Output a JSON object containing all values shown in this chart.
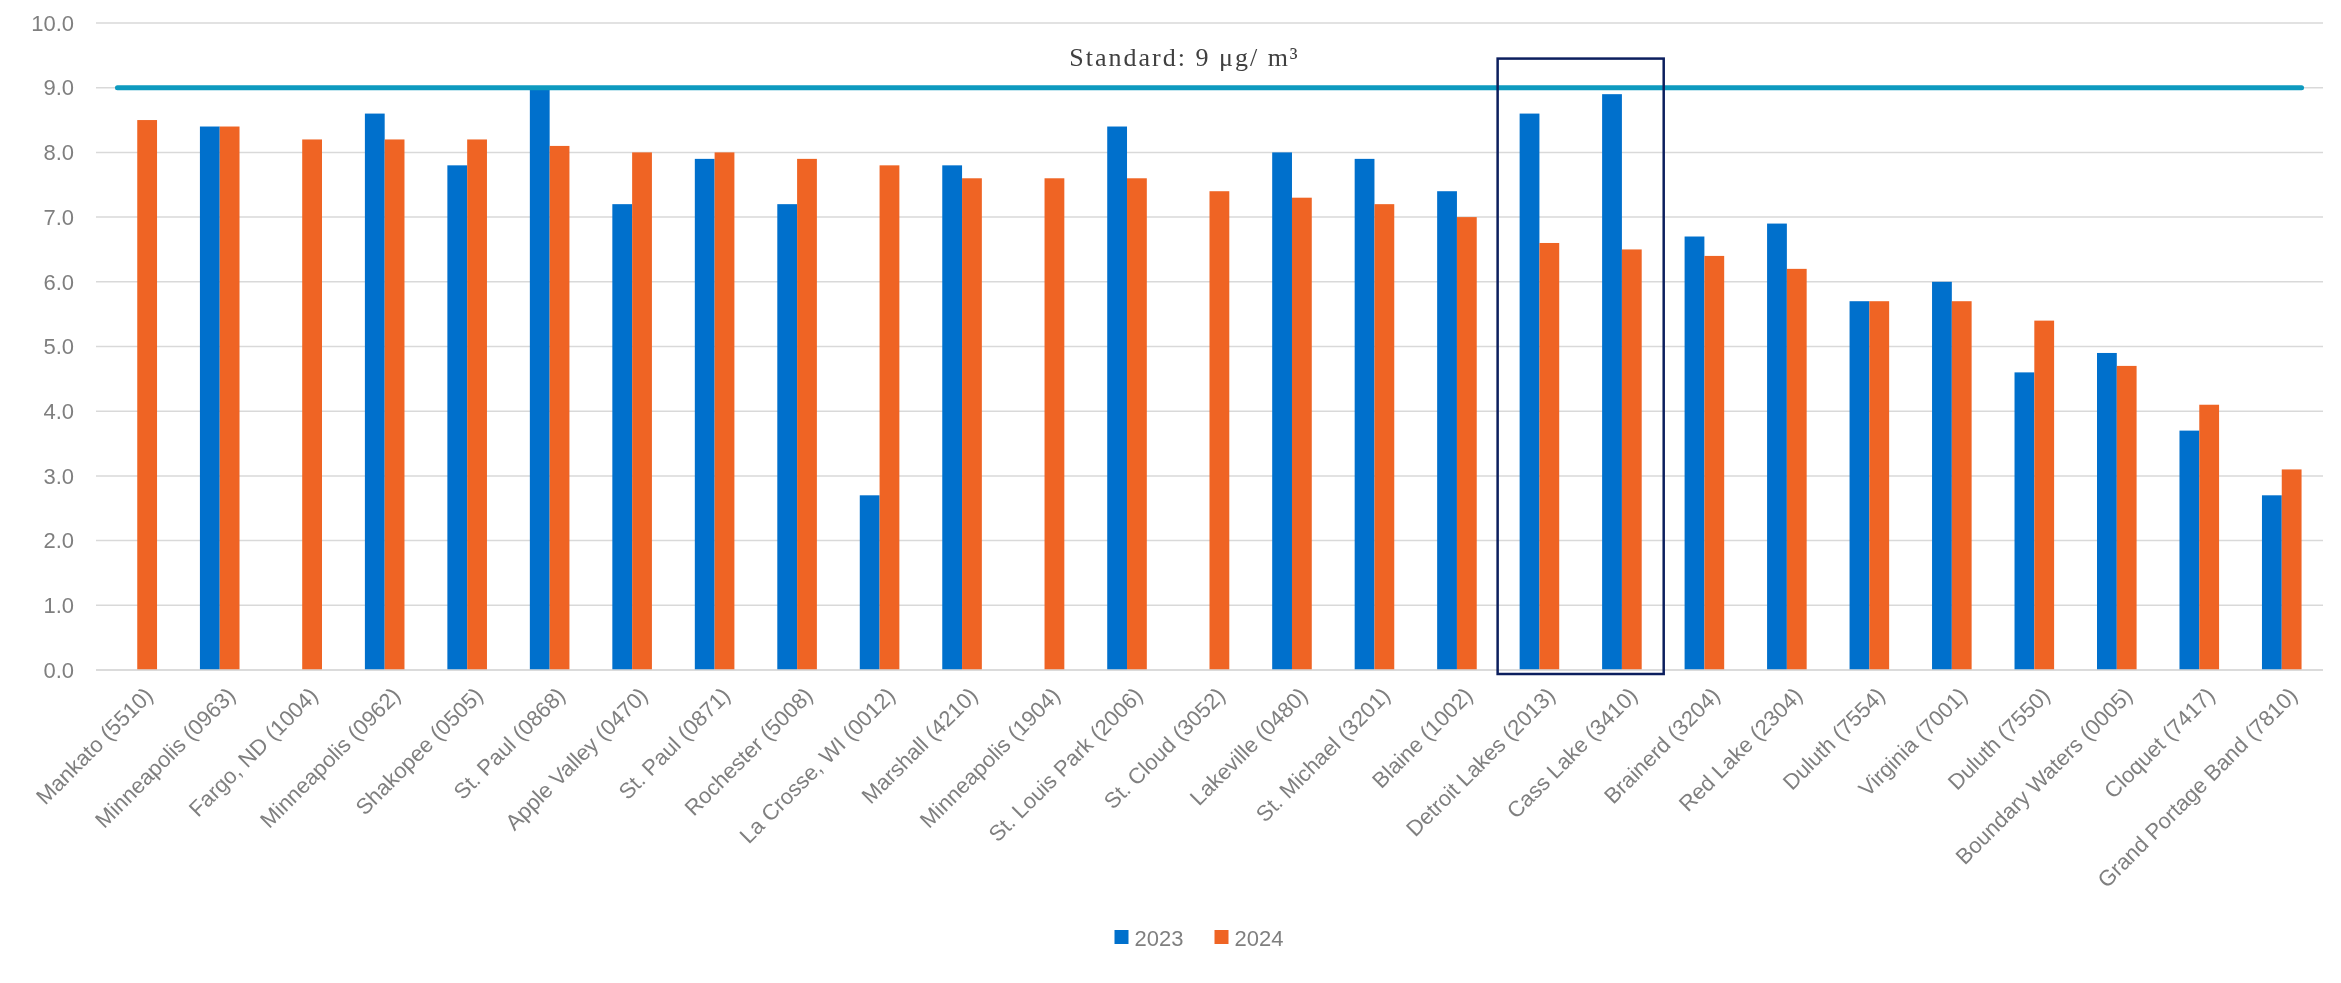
{
  "chart_data": {
    "type": "bar",
    "categories": [
      "Mankato (5510)",
      "Minneapolis (0963)",
      "Fargo, ND (1004)",
      "Minneapolis (0962)",
      "Shakopee (0505)",
      "St. Paul (0868)",
      "Apple Valley (0470)",
      "St. Paul (0871)",
      "Rochester (5008)",
      "La Crosse, WI (0012)",
      "Marshall (4210)",
      "Minneapolis (1904)",
      "St. Louis Park (2006)",
      "St. Cloud (3052)",
      "Lakeville (0480)",
      "St. Michael (3201)",
      "Blaine (1002)",
      "Detroit Lakes (2013)",
      "Cass Lake (3410)",
      "Brainerd (3204)",
      "Red Lake (2304)",
      "Duluth (7554)",
      "Virginia (7001)",
      "Duluth (7550)",
      "Boundary Waters (0005)",
      "Cloquet (7417)",
      "Grand Portage Band (7810)"
    ],
    "series": [
      {
        "name": "2023",
        "color": "#0070cc",
        "values": [
          null,
          8.4,
          null,
          8.6,
          7.8,
          9.0,
          7.2,
          7.9,
          7.2,
          2.7,
          7.8,
          null,
          8.4,
          null,
          8.0,
          7.9,
          7.4,
          8.6,
          8.9,
          6.7,
          6.9,
          5.7,
          6.0,
          4.6,
          4.9,
          3.7,
          2.7
        ]
      },
      {
        "name": "2024",
        "color": "#ef6424",
        "values": [
          8.5,
          8.4,
          8.2,
          8.2,
          8.2,
          8.1,
          8.0,
          8.0,
          7.9,
          7.8,
          7.6,
          7.6,
          7.6,
          7.4,
          7.3,
          7.2,
          7.0,
          6.6,
          6.5,
          6.4,
          6.2,
          5.7,
          5.7,
          5.4,
          4.7,
          4.1,
          3.1
        ]
      }
    ],
    "ylim": [
      0,
      10
    ],
    "yticks": [
      {
        "value": 0,
        "label": "0.0"
      },
      {
        "value": 1,
        "label": "1.0"
      },
      {
        "value": 2,
        "label": "2.0"
      },
      {
        "value": 3,
        "label": "3.0"
      },
      {
        "value": 4,
        "label": "4.0"
      },
      {
        "value": 5,
        "label": "5.0"
      },
      {
        "value": 6,
        "label": "6.0"
      },
      {
        "value": 7,
        "label": "7.0"
      },
      {
        "value": 8,
        "label": "8.0"
      },
      {
        "value": 9,
        "label": "9.0"
      },
      {
        "value": 10,
        "label": "10.0"
      }
    ],
    "grid": "y",
    "legend": "bottom",
    "ref_lines": [
      {
        "axis": "y",
        "value": 9,
        "label": "Standard: 9 μg/ m³",
        "color": "#0e9abf"
      }
    ]
  }
}
